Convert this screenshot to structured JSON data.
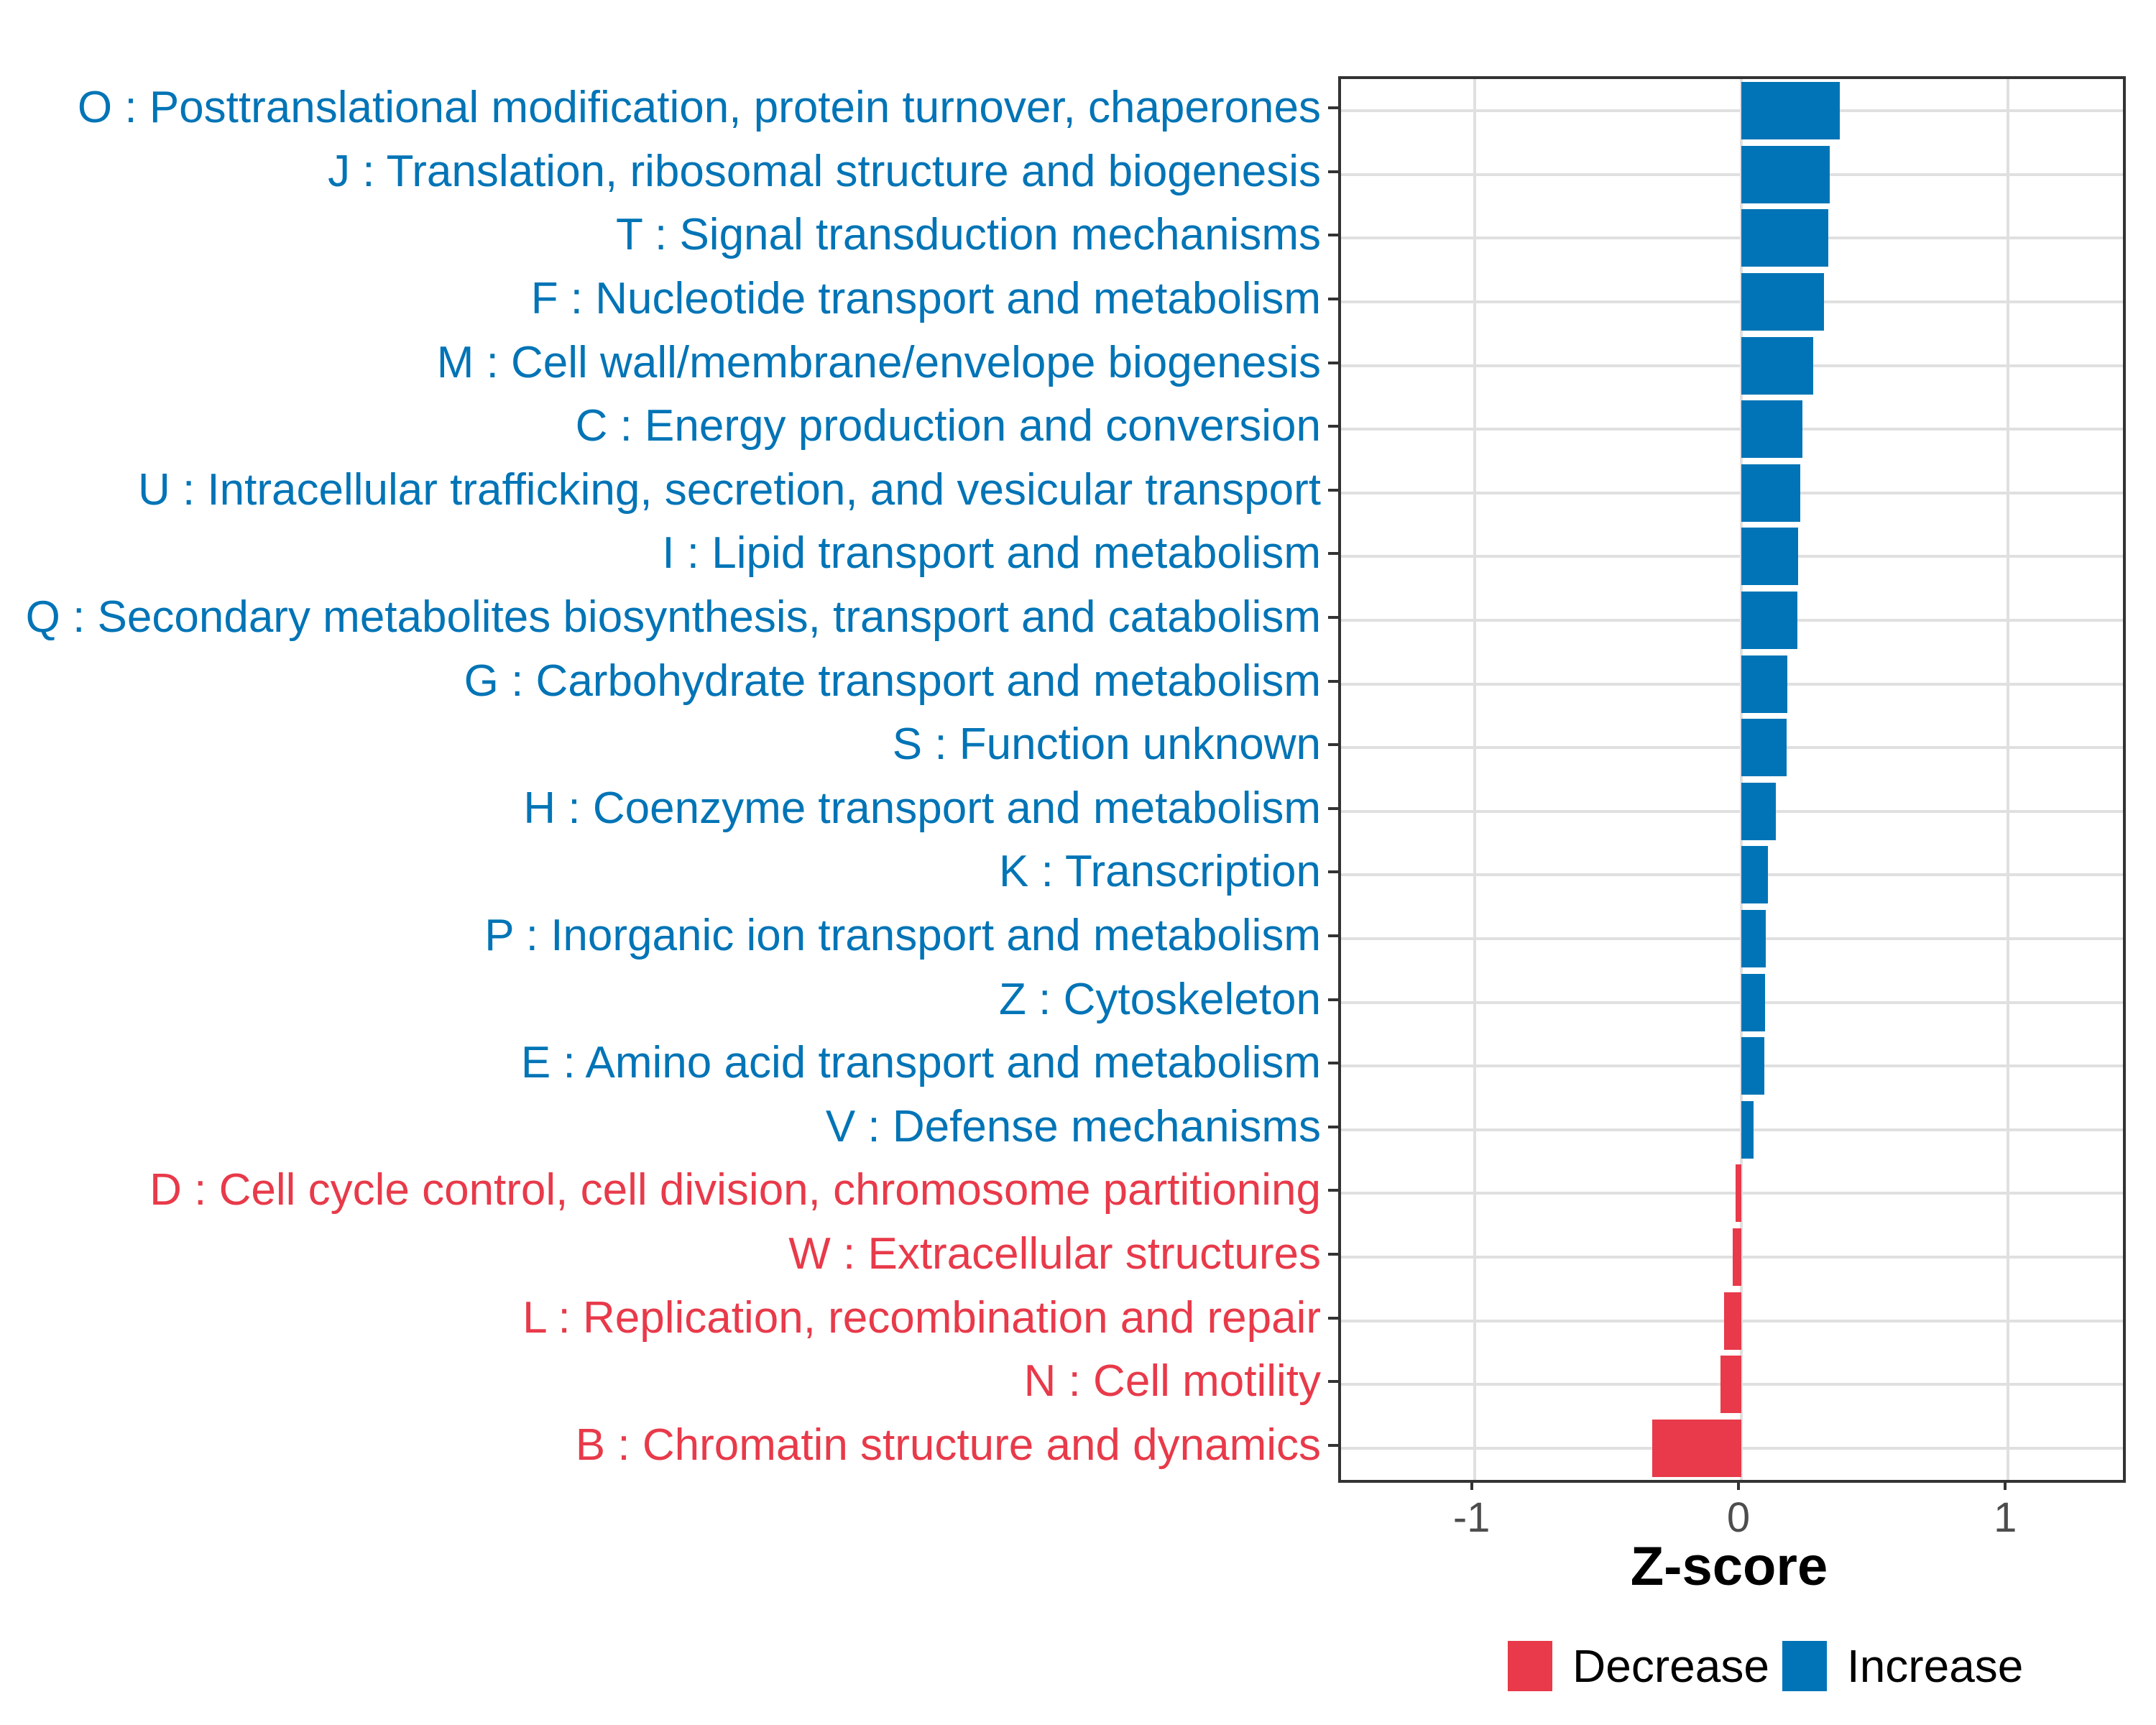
{
  "chart_data": {
    "type": "bar",
    "orientation": "horizontal",
    "title": "",
    "xlabel": "Z-score",
    "xlim": [
      -1.5,
      1.43
    ],
    "grid": true,
    "x_ticks": [
      {
        "value": -1,
        "label": "-1"
      },
      {
        "value": 0,
        "label": "0"
      },
      {
        "value": 1,
        "label": "1"
      }
    ],
    "categories": [
      {
        "label": "O : Posttranslational modification, protein turnover, chaperones",
        "value": 0.37,
        "direction": "increase"
      },
      {
        "label": "J : Translation, ribosomal structure and biogenesis",
        "value": 0.33,
        "direction": "increase"
      },
      {
        "label": "T : Signal transduction mechanisms",
        "value": 0.325,
        "direction": "increase"
      },
      {
        "label": "F : Nucleotide transport and metabolism",
        "value": 0.31,
        "direction": "increase"
      },
      {
        "label": "M : Cell wall/membrane/envelope biogenesis",
        "value": 0.268,
        "direction": "increase"
      },
      {
        "label": "C : Energy production and conversion",
        "value": 0.23,
        "direction": "increase"
      },
      {
        "label": "U : Intracellular trafficking, secretion, and vesicular transport",
        "value": 0.222,
        "direction": "increase"
      },
      {
        "label": "I : Lipid transport and metabolism",
        "value": 0.214,
        "direction": "increase"
      },
      {
        "label": "Q : Secondary metabolites biosynthesis, transport and catabolism",
        "value": 0.21,
        "direction": "increase"
      },
      {
        "label": "G : Carbohydrate transport and metabolism",
        "value": 0.172,
        "direction": "increase"
      },
      {
        "label": "S : Function unknown",
        "value": 0.17,
        "direction": "increase"
      },
      {
        "label": "H : Coenzyme transport and metabolism",
        "value": 0.129,
        "direction": "increase"
      },
      {
        "label": "K : Transcription",
        "value": 0.099,
        "direction": "increase"
      },
      {
        "label": "P : Inorganic ion transport and metabolism",
        "value": 0.092,
        "direction": "increase"
      },
      {
        "label": "Z : Cytoskeleton",
        "value": 0.089,
        "direction": "increase"
      },
      {
        "label": "E : Amino acid transport and metabolism",
        "value": 0.085,
        "direction": "increase"
      },
      {
        "label": "V : Defense mechanisms",
        "value": 0.045,
        "direction": "increase"
      },
      {
        "label": "D : Cell cycle control, cell division, chromosome partitioning",
        "value": -0.022,
        "direction": "decrease"
      },
      {
        "label": "W : Extracellular structures",
        "value": -0.032,
        "direction": "decrease"
      },
      {
        "label": "L : Replication, recombination and repair",
        "value": -0.065,
        "direction": "decrease"
      },
      {
        "label": "N : Cell motility",
        "value": -0.078,
        "direction": "decrease"
      },
      {
        "label": "B : Chromatin structure and dynamics",
        "value": -0.335,
        "direction": "decrease"
      }
    ],
    "legend": [
      {
        "label": "Decrease",
        "color": "#E83A4A"
      },
      {
        "label": "Increase",
        "color": "#0074B6"
      }
    ],
    "legend_position": "bottom-right",
    "colors": {
      "increase": "#0074B6",
      "decrease": "#E83A4A",
      "grid": "#E0E0E0",
      "axis_text": "#4D4D4D",
      "axis_title": "#000000",
      "panel_border": "#333333"
    }
  }
}
